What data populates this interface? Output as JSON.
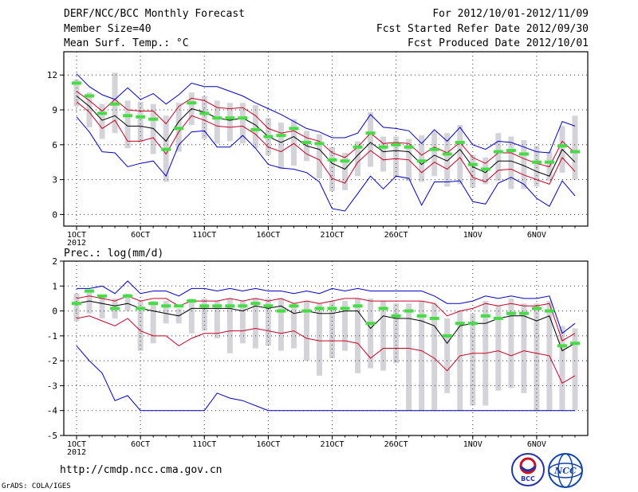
{
  "header": {
    "title": "DERF/NCC/BCC Monthly Forecast",
    "member_size": "Member Size=40",
    "variable": "Mean Surf. Temp.: °C",
    "period": "For 2012/10/01-2012/11/09",
    "started": "Fcst Started Refer Date 2012/09/30",
    "produced": "Fcst Produced Date 2012/10/01"
  },
  "footer": {
    "url": "http://cmdp.ncc.cma.gov.cn",
    "grads": "GrADS: COLA/IGES",
    "logo_left_text": "BCC",
    "logo_right_text": "NCC"
  },
  "colors": {
    "envelope": "#0000cc",
    "spread": "#cc0022",
    "mean": "#000000",
    "box": "#d4d4d8",
    "marker": "#44dd44",
    "grid": "#333333"
  },
  "chart_data": [
    {
      "type": "line",
      "title": "Mean Surf. Temp.: °C",
      "x": [
        1,
        2,
        3,
        4,
        5,
        6,
        7,
        8,
        9,
        10,
        11,
        12,
        13,
        14,
        15,
        16,
        17,
        18,
        19,
        20,
        21,
        22,
        23,
        24,
        25,
        26,
        27,
        28,
        29,
        30,
        31,
        32,
        33,
        34,
        35,
        36,
        37,
        38,
        39,
        40
      ],
      "x_ticks": [
        {
          "day": 1,
          "label": "1OCT",
          "sublabel": "2012"
        },
        {
          "day": 6,
          "label": "6OCT"
        },
        {
          "day": 11,
          "label": "11OCT"
        },
        {
          "day": 16,
          "label": "16OCT"
        },
        {
          "day": 21,
          "label": "21OCT"
        },
        {
          "day": 26,
          "label": "26OCT"
        },
        {
          "day": 32,
          "label": "1NOV"
        },
        {
          "day": 37,
          "label": "6NOV"
        }
      ],
      "ylim": [
        -1,
        14
      ],
      "y_ticks": [
        0,
        3,
        6,
        9,
        12
      ],
      "grid": true,
      "series": [
        {
          "name": "max",
          "color": "#0000cc",
          "values": [
            12.1,
            11.0,
            10.3,
            9.9,
            10.9,
            9.9,
            10.4,
            9.5,
            10.3,
            11.3,
            11.0,
            11.0,
            10.6,
            10.2,
            9.6,
            9.1,
            8.6,
            8.0,
            7.4,
            7.1,
            6.6,
            6.6,
            7.0,
            8.6,
            7.5,
            7.4,
            7.2,
            6.1,
            7.3,
            6.3,
            7.5,
            6.0,
            5.6,
            6.3,
            6.2,
            5.8,
            5.4,
            5.3,
            8.0,
            7.6
          ]
        },
        {
          "name": "upper",
          "color": "#cc0022",
          "values": [
            10.6,
            9.8,
            8.9,
            9.9,
            9.0,
            8.9,
            8.9,
            7.8,
            9.3,
            10.0,
            9.8,
            9.2,
            9.1,
            9.2,
            8.5,
            7.4,
            7.0,
            7.2,
            6.6,
            6.3,
            5.3,
            4.9,
            5.8,
            7.0,
            6.1,
            6.2,
            6.1,
            5.1,
            5.8,
            5.3,
            6.2,
            4.9,
            4.4,
            5.3,
            5.3,
            4.8,
            4.4,
            4.1,
            6.3,
            5.3
          ]
        },
        {
          "name": "mean",
          "color": "#000000",
          "values": [
            10.2,
            9.3,
            8.1,
            8.5,
            7.6,
            7.6,
            7.4,
            6.3,
            8.0,
            9.1,
            8.8,
            8.3,
            8.1,
            8.3,
            7.7,
            6.7,
            6.2,
            6.7,
            5.9,
            5.6,
            4.4,
            3.9,
            5.1,
            6.2,
            5.4,
            5.5,
            5.4,
            4.3,
            5.1,
            4.6,
            5.6,
            4.1,
            3.6,
            4.6,
            4.6,
            4.2,
            3.7,
            3.3,
            5.6,
            4.5
          ]
        },
        {
          "name": "lower",
          "color": "#cc0022",
          "values": [
            9.7,
            8.8,
            7.4,
            8.1,
            6.3,
            6.3,
            6.6,
            5.2,
            7.1,
            8.5,
            8.1,
            7.6,
            7.5,
            7.6,
            6.9,
            5.8,
            5.4,
            6.1,
            5.2,
            4.7,
            3.1,
            2.7,
            4.5,
            5.5,
            4.7,
            4.8,
            4.7,
            3.6,
            4.5,
            3.9,
            4.9,
            3.2,
            2.8,
            3.8,
            3.9,
            3.4,
            3.0,
            2.6,
            4.9,
            3.7
          ]
        },
        {
          "name": "min",
          "color": "#0000cc",
          "values": [
            8.4,
            7.1,
            5.4,
            5.3,
            4.1,
            4.4,
            4.6,
            3.3,
            6.0,
            7.1,
            7.2,
            5.8,
            5.8,
            6.8,
            5.7,
            4.3,
            4.0,
            3.9,
            3.6,
            2.8,
            0.5,
            0.3,
            1.8,
            3.3,
            2.2,
            3.3,
            3.1,
            0.8,
            2.8,
            2.8,
            2.9,
            1.1,
            0.9,
            2.7,
            3.2,
            2.6,
            1.4,
            0.7,
            2.9,
            1.6
          ]
        }
      ],
      "boxes": {
        "top": [
          11.6,
          10.5,
          9.5,
          12.2,
          9.8,
          9.7,
          9.5,
          8.5,
          9.6,
          10.5,
          10.2,
          9.8,
          9.6,
          9.6,
          9.4,
          8.3,
          7.9,
          8.2,
          7.2,
          6.9,
          5.8,
          5.3,
          6.3,
          8.8,
          6.7,
          6.7,
          6.5,
          6.8,
          7.2,
          7.0,
          7.7,
          5.1,
          4.9,
          7.0,
          6.7,
          6.4,
          5.9,
          5.4,
          7.6,
          8.5
        ],
        "bottom": [
          9.3,
          7.5,
          6.5,
          7.0,
          5.7,
          6.2,
          5.2,
          2.8,
          5.4,
          7.7,
          6.5,
          6.1,
          6.3,
          6.1,
          5.7,
          5.1,
          3.9,
          4.2,
          4.6,
          3.1,
          2.0,
          2.1,
          3.3,
          4.1,
          3.7,
          3.2,
          2.9,
          2.8,
          3.3,
          2.4,
          2.6,
          2.3,
          2.6,
          2.9,
          2.2,
          2.2,
          2.4,
          2.9,
          3.6,
          3.0
        ]
      },
      "markers": [
        11.3,
        10.2,
        8.7,
        9.5,
        8.5,
        8.4,
        8.2,
        5.6,
        7.4,
        9.6,
        8.7,
        8.3,
        8.3,
        8.3,
        7.3,
        6.7,
        6.8,
        7.4,
        6.2,
        6.1,
        4.7,
        4.6,
        5.8,
        7.0,
        5.8,
        6.0,
        5.8,
        4.6,
        5.6,
        5.2,
        6.2,
        4.3,
        3.9,
        5.4,
        5.5,
        5.2,
        4.5,
        4.5,
        5.9,
        5.4
      ]
    },
    {
      "type": "line",
      "title": "Prec.: log(mm/d)",
      "x": [
        1,
        2,
        3,
        4,
        5,
        6,
        7,
        8,
        9,
        10,
        11,
        12,
        13,
        14,
        15,
        16,
        17,
        18,
        19,
        20,
        21,
        22,
        23,
        24,
        25,
        26,
        27,
        28,
        29,
        30,
        31,
        32,
        33,
        34,
        35,
        36,
        37,
        38,
        39,
        40
      ],
      "x_ticks": [
        {
          "day": 1,
          "label": "1OCT",
          "sublabel": "2012"
        },
        {
          "day": 6,
          "label": "6OCT"
        },
        {
          "day": 11,
          "label": "11OCT"
        },
        {
          "day": 16,
          "label": "16OCT"
        },
        {
          "day": 21,
          "label": "21OCT"
        },
        {
          "day": 26,
          "label": "26OCT"
        },
        {
          "day": 32,
          "label": "1NOV"
        },
        {
          "day": 37,
          "label": "6NOV"
        }
      ],
      "ylim": [
        -5,
        2
      ],
      "y_ticks": [
        -5,
        -4,
        -3,
        -2,
        -1,
        0,
        1,
        2
      ],
      "grid": true,
      "series": [
        {
          "name": "max",
          "color": "#0000cc",
          "values": [
            0.9,
            0.9,
            1.0,
            0.7,
            1.2,
            0.7,
            0.8,
            0.8,
            0.6,
            0.9,
            0.9,
            0.8,
            0.9,
            0.8,
            0.9,
            0.8,
            0.8,
            0.7,
            0.8,
            0.7,
            0.9,
            0.8,
            0.9,
            0.8,
            0.8,
            0.8,
            0.8,
            0.8,
            0.6,
            0.3,
            0.3,
            0.4,
            0.6,
            0.5,
            0.6,
            0.5,
            0.5,
            0.6,
            -0.9,
            -0.5
          ]
        },
        {
          "name": "upper",
          "color": "#cc0022",
          "values": [
            0.5,
            0.6,
            0.5,
            0.4,
            0.6,
            0.4,
            0.5,
            0.5,
            0.2,
            0.4,
            0.4,
            0.4,
            0.5,
            0.4,
            0.5,
            0.4,
            0.5,
            0.3,
            0.4,
            0.3,
            0.4,
            0.5,
            0.5,
            0.4,
            0.4,
            0.4,
            0.4,
            0.4,
            0.3,
            -0.2,
            0.0,
            0.1,
            0.3,
            0.2,
            0.3,
            0.2,
            0.2,
            0.3,
            -1.2,
            -0.9
          ]
        },
        {
          "name": "mean",
          "color": "#000000",
          "values": [
            0.3,
            0.4,
            0.3,
            0.2,
            0.3,
            0.1,
            0.0,
            -0.1,
            -0.2,
            0.1,
            0.1,
            0.1,
            0.1,
            0.0,
            0.2,
            0.1,
            0.2,
            -0.1,
            0.0,
            -0.1,
            -0.1,
            0.0,
            0.0,
            -0.7,
            -0.2,
            -0.3,
            -0.3,
            -0.4,
            -0.6,
            -1.3,
            -0.6,
            -0.5,
            -0.5,
            -0.3,
            -0.2,
            -0.2,
            -0.4,
            -0.2,
            -1.6,
            -1.3
          ]
        },
        {
          "name": "lower",
          "color": "#cc0022",
          "values": [
            -0.3,
            -0.2,
            -0.4,
            -0.6,
            -0.3,
            -0.8,
            -1.0,
            -1.0,
            -1.4,
            -1.1,
            -0.9,
            -0.9,
            -0.8,
            -0.8,
            -0.7,
            -0.8,
            -0.9,
            -0.8,
            -1.1,
            -1.2,
            -1.2,
            -1.2,
            -1.3,
            -1.9,
            -1.5,
            -1.5,
            -1.5,
            -1.6,
            -1.9,
            -2.4,
            -1.8,
            -1.7,
            -1.7,
            -1.6,
            -1.8,
            -1.6,
            -1.7,
            -1.8,
            -2.9,
            -2.6
          ]
        },
        {
          "name": "min",
          "color": "#0000cc",
          "values": [
            -1.4,
            -2.0,
            -2.5,
            -3.6,
            -3.4,
            -4.0,
            -4.0,
            -4.0,
            -4.0,
            -4.0,
            -4.0,
            -3.3,
            -3.5,
            -3.6,
            -3.8,
            -4.0,
            -4.0,
            -4.0,
            -4.0,
            -4.0,
            -4.0,
            -4.0,
            -4.0,
            -4.0,
            -4.0,
            -4.0,
            -4.0,
            -4.0,
            -4.0,
            -4.0,
            -4.0,
            -4.0,
            -4.0,
            -4.0,
            -4.0,
            -4.0,
            -4.0,
            -4.0,
            -4.0,
            -4.0
          ]
        }
      ],
      "boxes": {
        "top": [
          0.7,
          0.8,
          0.6,
          0.5,
          0.7,
          0.4,
          0.4,
          0.4,
          0.1,
          0.5,
          0.5,
          0.4,
          0.5,
          0.4,
          0.5,
          0.5,
          0.5,
          0.3,
          0.4,
          0.3,
          0.4,
          0.4,
          0.5,
          0.5,
          0.4,
          0.3,
          0.3,
          0.4,
          0.3,
          -0.3,
          0.0,
          -0.1,
          0.4,
          0.2,
          0.5,
          0.3,
          0.3,
          0.4,
          -0.6,
          -0.7
        ],
        "bottom": [
          -0.4,
          -0.1,
          -0.3,
          -0.3,
          0.0,
          -1.6,
          -1.3,
          -0.5,
          -0.5,
          -0.9,
          -0.8,
          -1.1,
          -1.7,
          -1.3,
          -1.5,
          -1.4,
          -1.6,
          -1.5,
          -2.0,
          -2.6,
          -1.9,
          -1.6,
          -2.5,
          -2.3,
          -2.4,
          -2.1,
          -4.0,
          -4.0,
          -4.0,
          -3.3,
          -4.0,
          -3.8,
          -3.8,
          -3.2,
          -3.1,
          -3.3,
          -4.0,
          -4.0,
          -4.0,
          -4.0
        ]
      },
      "markers": [
        0.3,
        0.8,
        0.6,
        0.1,
        0.6,
        0.1,
        0.3,
        0.2,
        0.2,
        0.4,
        0.2,
        0.2,
        0.2,
        0.2,
        0.3,
        0.2,
        0.0,
        0.2,
        0.0,
        0.1,
        0.1,
        0.1,
        0.2,
        -0.5,
        0.1,
        -0.2,
        0.0,
        -0.2,
        -0.3,
        -1.0,
        -0.5,
        -0.5,
        -0.2,
        -0.3,
        -0.1,
        -0.1,
        0.1,
        0.0,
        -1.4,
        -1.3
      ]
    }
  ]
}
